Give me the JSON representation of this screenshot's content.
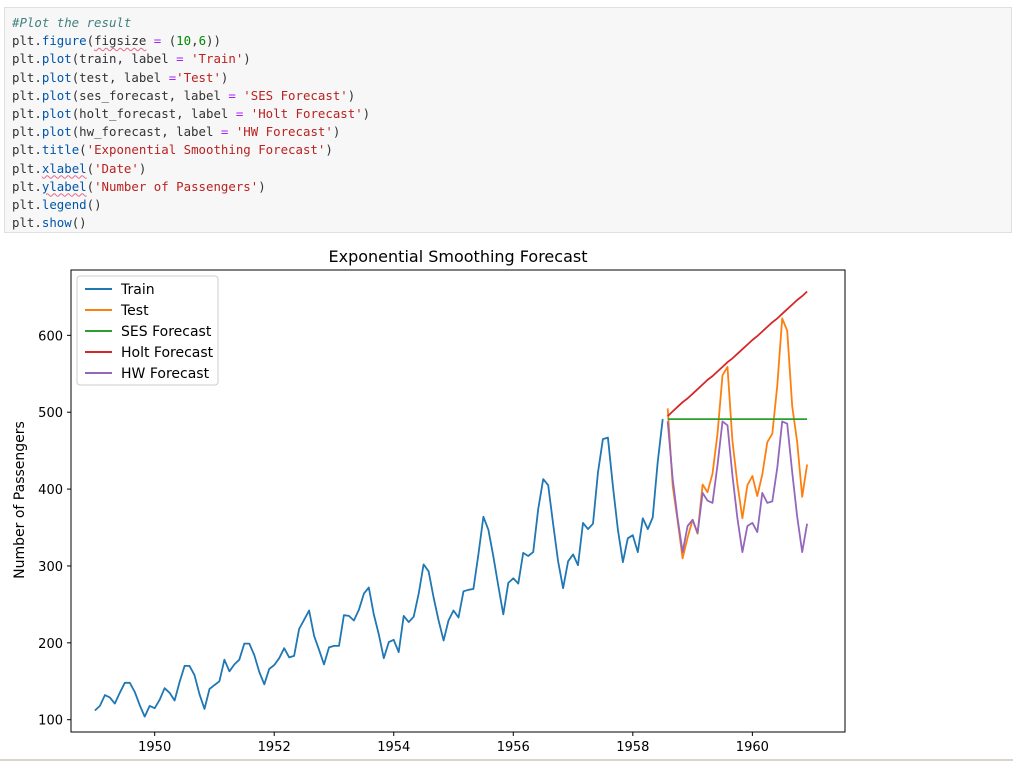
{
  "code": {
    "lines": [
      [
        {
          "t": "#Plot the result",
          "c": "cm"
        }
      ],
      [
        {
          "t": "plt",
          "c": "kw"
        },
        {
          "t": ".",
          "c": "kw"
        },
        {
          "t": "figure",
          "c": "fn"
        },
        {
          "t": "(",
          "c": "kw"
        },
        {
          "t": "figsize",
          "c": "kw squig"
        },
        {
          "t": " = ",
          "c": "op"
        },
        {
          "t": "(",
          "c": "kw"
        },
        {
          "t": "10",
          "c": "nm"
        },
        {
          "t": ",",
          "c": "kw"
        },
        {
          "t": "6",
          "c": "nm"
        },
        {
          "t": "))",
          "c": "kw"
        }
      ],
      [
        {
          "t": "plt",
          "c": "kw"
        },
        {
          "t": ".",
          "c": "kw"
        },
        {
          "t": "plot",
          "c": "fn"
        },
        {
          "t": "(train, label ",
          "c": "kw"
        },
        {
          "t": "=",
          "c": "op"
        },
        {
          "t": " ",
          "c": "kw"
        },
        {
          "t": "'Train'",
          "c": "st"
        },
        {
          "t": ")",
          "c": "kw"
        }
      ],
      [
        {
          "t": "plt",
          "c": "kw"
        },
        {
          "t": ".",
          "c": "kw"
        },
        {
          "t": "plot",
          "c": "fn"
        },
        {
          "t": "(test, label ",
          "c": "kw"
        },
        {
          "t": "=",
          "c": "op"
        },
        {
          "t": "'Test'",
          "c": "st"
        },
        {
          "t": ")",
          "c": "kw"
        }
      ],
      [
        {
          "t": "plt",
          "c": "kw"
        },
        {
          "t": ".",
          "c": "kw"
        },
        {
          "t": "plot",
          "c": "fn"
        },
        {
          "t": "(ses_forecast, label ",
          "c": "kw"
        },
        {
          "t": "=",
          "c": "op"
        },
        {
          "t": " ",
          "c": "kw"
        },
        {
          "t": "'SES Forecast'",
          "c": "st"
        },
        {
          "t": ")",
          "c": "kw"
        }
      ],
      [
        {
          "t": "plt",
          "c": "kw"
        },
        {
          "t": ".",
          "c": "kw"
        },
        {
          "t": "plot",
          "c": "fn"
        },
        {
          "t": "(holt_forecast, label ",
          "c": "kw"
        },
        {
          "t": "=",
          "c": "op"
        },
        {
          "t": " ",
          "c": "kw"
        },
        {
          "t": "'Holt Forecast'",
          "c": "st"
        },
        {
          "t": ")",
          "c": "kw"
        }
      ],
      [
        {
          "t": "plt",
          "c": "kw"
        },
        {
          "t": ".",
          "c": "kw"
        },
        {
          "t": "plot",
          "c": "fn"
        },
        {
          "t": "(hw_forecast, label ",
          "c": "kw"
        },
        {
          "t": "=",
          "c": "op"
        },
        {
          "t": " ",
          "c": "kw"
        },
        {
          "t": "'HW Forecast'",
          "c": "st"
        },
        {
          "t": ")",
          "c": "kw"
        }
      ],
      [
        {
          "t": "plt",
          "c": "kw"
        },
        {
          "t": ".",
          "c": "kw"
        },
        {
          "t": "title",
          "c": "fn"
        },
        {
          "t": "(",
          "c": "kw"
        },
        {
          "t": "'Exponential Smoothing Forecast'",
          "c": "st"
        },
        {
          "t": ")",
          "c": "kw"
        }
      ],
      [
        {
          "t": "plt",
          "c": "kw"
        },
        {
          "t": ".",
          "c": "kw"
        },
        {
          "t": "xlabel",
          "c": "fn squig"
        },
        {
          "t": "(",
          "c": "kw"
        },
        {
          "t": "'Date'",
          "c": "st"
        },
        {
          "t": ")",
          "c": "kw"
        }
      ],
      [
        {
          "t": "plt",
          "c": "kw"
        },
        {
          "t": ".",
          "c": "kw"
        },
        {
          "t": "ylabel",
          "c": "fn squig"
        },
        {
          "t": "(",
          "c": "kw"
        },
        {
          "t": "'Number of Passengers'",
          "c": "st"
        },
        {
          "t": ")",
          "c": "kw"
        }
      ],
      [
        {
          "t": "plt",
          "c": "kw"
        },
        {
          "t": ".",
          "c": "kw"
        },
        {
          "t": "legend",
          "c": "fn"
        },
        {
          "t": "()",
          "c": "kw"
        }
      ],
      [
        {
          "t": "plt",
          "c": "kw"
        },
        {
          "t": ".",
          "c": "kw"
        },
        {
          "t": "show",
          "c": "fn"
        },
        {
          "t": "()",
          "c": "kw"
        }
      ]
    ]
  },
  "chart_data": {
    "type": "line",
    "title": "Exponential Smoothing Forecast",
    "xlabel": "",
    "ylabel": "Number of Passengers",
    "xlim": [
      1948.6,
      1961.55
    ],
    "ylim": [
      84,
      685
    ],
    "xticks": [
      1950,
      1952,
      1954,
      1956,
      1958,
      1960
    ],
    "yticks": [
      100,
      200,
      300,
      400,
      500,
      600
    ],
    "grid": false,
    "legend_position": "top-left",
    "x_start": 1949.0,
    "x_step": 0.0833333,
    "series": [
      {
        "name": "Train",
        "color": "#1f77b4",
        "start_index": 0,
        "values": [
          112,
          118,
          132,
          129,
          121,
          135,
          148,
          148,
          136,
          119,
          104,
          118,
          115,
          126,
          141,
          135,
          125,
          149,
          170,
          170,
          158,
          133,
          114,
          140,
          145,
          150,
          178,
          163,
          172,
          178,
          199,
          199,
          184,
          162,
          146,
          166,
          171,
          180,
          193,
          181,
          183,
          218,
          230,
          242,
          209,
          191,
          172,
          194,
          196,
          196,
          236,
          235,
          229,
          243,
          264,
          272,
          237,
          211,
          180,
          201,
          204,
          188,
          235,
          227,
          234,
          264,
          302,
          293,
          259,
          229,
          203,
          229,
          242,
          233,
          267,
          269,
          270,
          315,
          364,
          347,
          312,
          274,
          237,
          278,
          284,
          277,
          317,
          313,
          318,
          374,
          413,
          405,
          355,
          306,
          271,
          306,
          315,
          301,
          356,
          348,
          355,
          422,
          465,
          467,
          404,
          347,
          305,
          336,
          340,
          318,
          362,
          348,
          363,
          435,
          491
        ]
      },
      {
        "name": "Test",
        "color": "#ff7f0e",
        "start_index": 115,
        "values": [
          505,
          404,
          359,
          310,
          337,
          360,
          342,
          406,
          396,
          420,
          472,
          548,
          559,
          463,
          407,
          362,
          405,
          417,
          391,
          419,
          461,
          472,
          535,
          622,
          606,
          508,
          461,
          390,
          432
        ]
      },
      {
        "name": "SES Forecast",
        "color": "#2ca02c",
        "start_index": 115,
        "values": [
          491,
          491,
          491,
          491,
          491,
          491,
          491,
          491,
          491,
          491,
          491,
          491,
          491,
          491,
          491,
          491,
          491,
          491,
          491,
          491,
          491,
          491,
          491,
          491,
          491,
          491,
          491,
          491,
          491
        ]
      },
      {
        "name": "Holt Forecast",
        "color": "#d62728",
        "start_index": 115,
        "values": [
          495,
          501,
          507,
          513,
          518,
          524,
          530,
          536,
          542,
          547,
          553,
          559,
          565,
          570,
          576,
          582,
          588,
          594,
          599,
          605,
          611,
          617,
          622,
          628,
          634,
          640,
          646,
          651,
          657
        ]
      },
      {
        "name": "HW Forecast",
        "color": "#9467bd",
        "start_index": 115,
        "values": [
          488,
          413,
          362,
          318,
          352,
          360,
          343,
          395,
          385,
          382,
          431,
          488,
          483,
          418,
          362,
          318,
          352,
          356,
          344,
          395,
          382,
          384,
          428,
          488,
          485,
          422,
          364,
          318,
          355
        ]
      }
    ]
  }
}
